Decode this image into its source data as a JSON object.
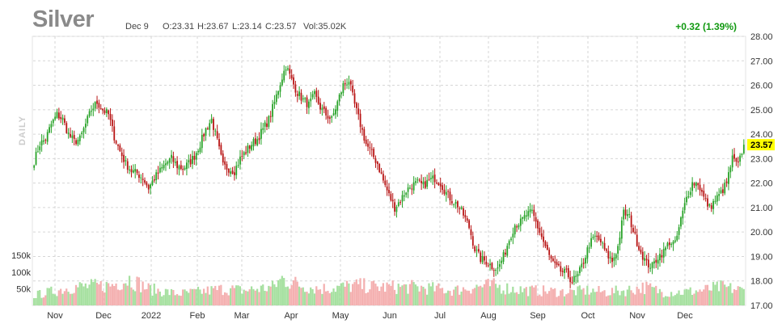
{
  "header": {
    "title": "Silver",
    "date": "Dec 9",
    "open": "O:23.31",
    "high": "H:23.67",
    "low": "L:23.14",
    "close": "C:23.57",
    "volume": "Vol:35.02K",
    "change": "+0.32 (1.39%)",
    "period_label": "DAILY"
  },
  "chart_data": {
    "type": "candlestick",
    "price_axis": {
      "min": 17,
      "max": 28,
      "ticks": [
        "17.00",
        "18.00",
        "19.00",
        "20.00",
        "21.00",
        "22.00",
        "23.00",
        "24.00",
        "25.00",
        "26.00",
        "27.00",
        "28.00"
      ]
    },
    "volume_axis": {
      "ticks": [
        "50k",
        "100k",
        "150k"
      ],
      "max": 170
    },
    "month_labels": [
      "Nov",
      "Dec",
      "2022",
      "Feb",
      "Mar",
      "Apr",
      "May",
      "Jun",
      "Jul",
      "Aug",
      "Sep",
      "Oct",
      "Nov",
      "Dec"
    ],
    "last_price_label": "23.57",
    "grid": true,
    "colors": {
      "up": "#27a227",
      "down": "#b81414",
      "vol_up": "#a6e0a0",
      "vol_down": "#f4b0b0",
      "last_tag": "#ffff00"
    },
    "close_path": [
      [
        0,
        22.9
      ],
      [
        3,
        23.6
      ],
      [
        6,
        23.8
      ],
      [
        9,
        24.4
      ],
      [
        12,
        24.8
      ],
      [
        15,
        24.6
      ],
      [
        18,
        24.0
      ],
      [
        21,
        23.7
      ],
      [
        24,
        23.8
      ],
      [
        27,
        24.4
      ],
      [
        30,
        25.0
      ],
      [
        33,
        25.3
      ],
      [
        36,
        25.0
      ],
      [
        39,
        24.8
      ],
      [
        42,
        23.9
      ],
      [
        45,
        23.3
      ],
      [
        48,
        22.8
      ],
      [
        51,
        22.5
      ],
      [
        54,
        22.4
      ],
      [
        57,
        22.2
      ],
      [
        60,
        21.8
      ],
      [
        63,
        22.2
      ],
      [
        66,
        22.5
      ],
      [
        69,
        22.8
      ],
      [
        72,
        23.0
      ],
      [
        75,
        22.7
      ],
      [
        78,
        22.6
      ],
      [
        81,
        22.8
      ],
      [
        84,
        23.1
      ],
      [
        87,
        23.6
      ],
      [
        90,
        24.2
      ],
      [
        93,
        24.6
      ],
      [
        96,
        23.7
      ],
      [
        99,
        22.7
      ],
      [
        102,
        22.6
      ],
      [
        105,
        22.5
      ],
      [
        108,
        23.0
      ],
      [
        111,
        23.3
      ],
      [
        114,
        23.6
      ],
      [
        117,
        23.8
      ],
      [
        120,
        24.2
      ],
      [
        123,
        24.6
      ],
      [
        126,
        25.3
      ],
      [
        129,
        26.1
      ],
      [
        132,
        26.8
      ],
      [
        135,
        26.2
      ],
      [
        138,
        25.7
      ],
      [
        141,
        25.4
      ],
      [
        144,
        25.2
      ],
      [
        147,
        25.6
      ],
      [
        150,
        25.1
      ],
      [
        153,
        24.8
      ],
      [
        156,
        24.6
      ],
      [
        159,
        25.3
      ],
      [
        162,
        26.0
      ],
      [
        165,
        26.2
      ],
      [
        168,
        25.2
      ],
      [
        171,
        24.4
      ],
      [
        174,
        23.6
      ],
      [
        177,
        23.2
      ],
      [
        180,
        22.8
      ],
      [
        183,
        22.1
      ],
      [
        186,
        21.5
      ],
      [
        189,
        21.0
      ],
      [
        192,
        21.3
      ],
      [
        195,
        21.7
      ],
      [
        198,
        21.9
      ],
      [
        201,
        22.0
      ],
      [
        204,
        21.9
      ],
      [
        207,
        22.1
      ],
      [
        210,
        22.2
      ],
      [
        213,
        22.0
      ],
      [
        216,
        21.6
      ],
      [
        219,
        21.3
      ],
      [
        222,
        21.1
      ],
      [
        225,
        20.7
      ],
      [
        228,
        20.2
      ],
      [
        231,
        19.3
      ],
      [
        234,
        18.9
      ],
      [
        237,
        18.8
      ],
      [
        240,
        18.6
      ],
      [
        243,
        18.5
      ],
      [
        246,
        19.0
      ],
      [
        249,
        19.7
      ],
      [
        252,
        20.3
      ],
      [
        255,
        20.4
      ],
      [
        258,
        20.7
      ],
      [
        261,
        20.8
      ],
      [
        264,
        20.2
      ],
      [
        267,
        19.6
      ],
      [
        270,
        19.0
      ],
      [
        273,
        18.6
      ],
      [
        276,
        18.4
      ],
      [
        279,
        18.3
      ],
      [
        282,
        18.0
      ],
      [
        285,
        18.2
      ],
      [
        288,
        18.8
      ],
      [
        291,
        19.5
      ],
      [
        294,
        19.8
      ],
      [
        297,
        19.6
      ],
      [
        300,
        19.1
      ],
      [
        303,
        18.8
      ],
      [
        306,
        19.4
      ],
      [
        309,
        20.8
      ],
      [
        312,
        20.6
      ],
      [
        315,
        19.8
      ],
      [
        318,
        19.2
      ],
      [
        321,
        18.7
      ],
      [
        324,
        18.6
      ],
      [
        327,
        19.0
      ],
      [
        330,
        19.2
      ],
      [
        333,
        19.6
      ],
      [
        336,
        19.5
      ],
      [
        339,
        20.5
      ],
      [
        342,
        21.4
      ],
      [
        345,
        22.0
      ],
      [
        348,
        22.0
      ],
      [
        351,
        21.4
      ],
      [
        354,
        21.0
      ],
      [
        357,
        21.3
      ],
      [
        360,
        21.6
      ],
      [
        363,
        22.0
      ],
      [
        366,
        23.0
      ],
      [
        369,
        22.7
      ],
      [
        372,
        23.6
      ]
    ],
    "volume_profile": [
      [
        0,
        30
      ],
      [
        20,
        55
      ],
      [
        40,
        60
      ],
      [
        50,
        80
      ],
      [
        60,
        50
      ],
      [
        75,
        35
      ],
      [
        85,
        40
      ],
      [
        100,
        50
      ],
      [
        110,
        45
      ],
      [
        125,
        55
      ],
      [
        130,
        80
      ],
      [
        140,
        60
      ],
      [
        150,
        50
      ],
      [
        160,
        55
      ],
      [
        170,
        60
      ],
      [
        180,
        55
      ],
      [
        200,
        55
      ],
      [
        220,
        45
      ],
      [
        230,
        55
      ],
      [
        240,
        60
      ],
      [
        250,
        50
      ],
      [
        260,
        45
      ],
      [
        280,
        40
      ],
      [
        290,
        45
      ],
      [
        300,
        40
      ],
      [
        310,
        45
      ],
      [
        320,
        55
      ],
      [
        330,
        40
      ],
      [
        340,
        40
      ],
      [
        350,
        45
      ],
      [
        360,
        55
      ],
      [
        372,
        45
      ]
    ]
  }
}
